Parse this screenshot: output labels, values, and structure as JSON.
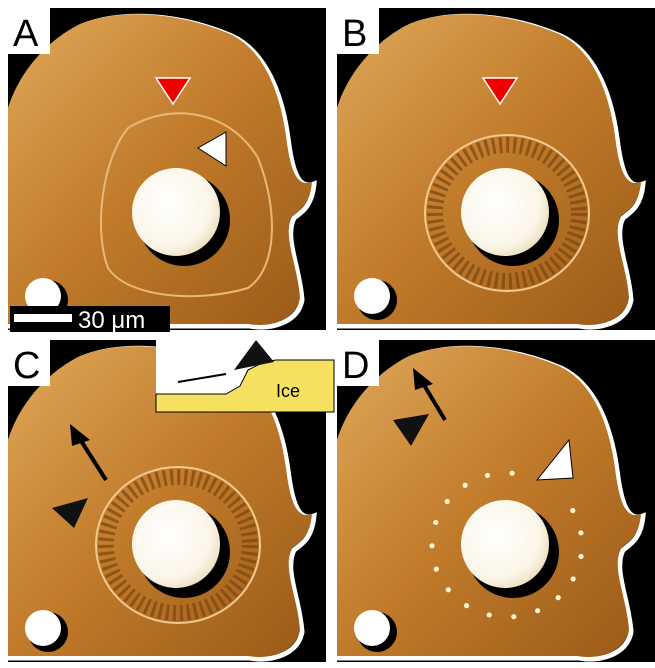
{
  "panels": [
    {
      "label": "A"
    },
    {
      "label": "B"
    },
    {
      "label": "C"
    },
    {
      "label": "D"
    }
  ],
  "scale_bar": "30 μm",
  "inset": {
    "label": "Ice"
  }
}
